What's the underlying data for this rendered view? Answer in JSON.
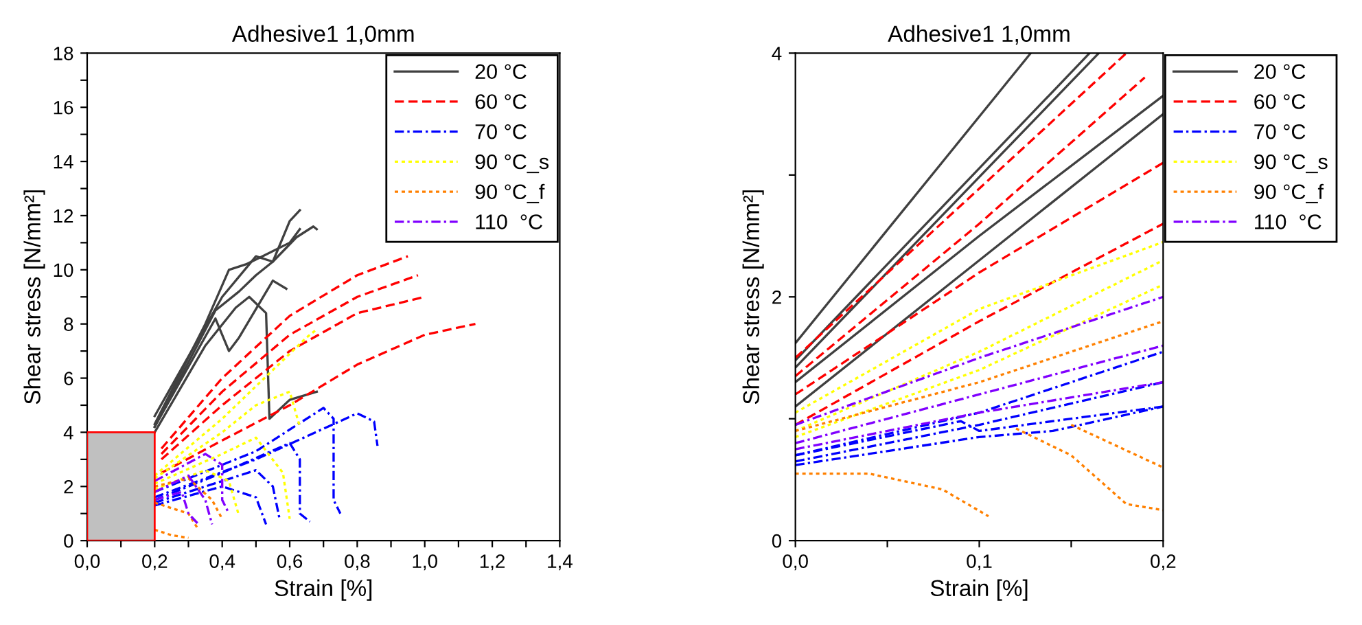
{
  "chart_data": [
    {
      "type": "line",
      "title": "Adhesive1 1,0mm",
      "xlabel": "Strain [%]",
      "ylabel": "Shear stress [N/mm²]",
      "legend": "top right",
      "grid": false,
      "xlim": [
        0,
        1.4
      ],
      "xticks": [
        {
          "value": 0,
          "label": "0,0"
        },
        {
          "value": 0.1,
          "label": null
        },
        {
          "value": 0.2,
          "label": "0,2"
        },
        {
          "value": 0.3,
          "label": null
        },
        {
          "value": 0.4,
          "label": "0,4"
        },
        {
          "value": 0.5,
          "label": null
        },
        {
          "value": 0.6,
          "label": "0,6"
        },
        {
          "value": 0.7,
          "label": null
        },
        {
          "value": 0.8,
          "label": "0,8"
        },
        {
          "value": 0.9,
          "label": null
        },
        {
          "value": 1.0,
          "label": "1,0"
        },
        {
          "value": 1.1,
          "label": null
        },
        {
          "value": 1.2,
          "label": "1,2"
        },
        {
          "value": 1.3,
          "label": null
        },
        {
          "value": 1.4,
          "label": "1,4"
        }
      ],
      "ylim": [
        0,
        18
      ],
      "yticks": [
        0,
        {
          "value": 1,
          "label": null
        },
        2,
        {
          "value": 3,
          "label": null
        },
        4,
        {
          "value": 5,
          "label": null
        },
        6,
        {
          "value": 7,
          "label": null
        },
        8,
        {
          "value": 9,
          "label": null
        },
        10,
        {
          "value": 11,
          "label": null
        },
        12,
        {
          "value": 13,
          "label": null
        },
        14,
        {
          "value": 15,
          "label": null
        },
        16,
        {
          "value": 17,
          "label": null
        },
        18
      ],
      "series": [
        {
          "name": "20 °C",
          "color": "#404040",
          "line_style": "solid",
          "x": [
            0.2,
            0.4,
            0.5,
            0.55,
            0.6,
            0.63
          ],
          "values": [
            4.6,
            9,
            10.5,
            10.3,
            11.8,
            12.2
          ]
        },
        {
          "color": "#404040",
          "line_style": "solid",
          "x": [
            0.2,
            0.35,
            0.42,
            0.47,
            0.52,
            0.6,
            0.63
          ],
          "values": [
            4.3,
            8,
            10,
            10.2,
            10.5,
            11,
            11.5
          ]
        },
        {
          "color": "#404040",
          "line_style": "solid",
          "x": [
            0.2,
            0.38,
            0.45,
            0.5,
            0.55,
            0.62,
            0.67,
            0.68
          ],
          "values": [
            4.2,
            8.5,
            9.2,
            9.8,
            10.3,
            11.2,
            11.6,
            11.5
          ]
        },
        {
          "color": "#404040",
          "line_style": "solid",
          "x": [
            0.2,
            0.35,
            0.44,
            0.48,
            0.53,
            0.54,
            0.6,
            0.68
          ],
          "values": [
            4.0,
            7.2,
            8.6,
            9,
            8.4,
            4.5,
            5.2,
            5.5
          ]
        },
        {
          "color": "#404040",
          "line_style": "solid",
          "x": [
            0.2,
            0.38,
            0.42,
            0.45,
            0.55,
            0.59
          ],
          "values": [
            4.2,
            8.2,
            7,
            7.5,
            9.6,
            9.3
          ]
        },
        {
          "name": "60 °C",
          "color": "#ff0000",
          "line_style": "dashed",
          "x": [
            0.22,
            0.4,
            0.6,
            0.8,
            0.95
          ],
          "values": [
            3.4,
            6.0,
            8.3,
            9.8,
            10.5
          ]
        },
        {
          "color": "#ff0000",
          "line_style": "dashed",
          "x": [
            0.22,
            0.4,
            0.6,
            0.8,
            0.98
          ],
          "values": [
            3.2,
            5.5,
            7.6,
            9.0,
            9.8
          ]
        },
        {
          "color": "#ff0000",
          "line_style": "dashed",
          "x": [
            0.22,
            0.4,
            0.6,
            0.8,
            1.0
          ],
          "values": [
            3.0,
            5.0,
            7.0,
            8.4,
            9.0
          ]
        },
        {
          "color": "#ff0000",
          "line_style": "dashed",
          "x": [
            0.22,
            0.4,
            0.6,
            0.8,
            1.0,
            1.15
          ],
          "values": [
            2.5,
            3.7,
            5.0,
            6.5,
            7.6,
            8.0
          ]
        },
        {
          "name": "70 °C",
          "color": "#0000ff",
          "line_style": "dashdot",
          "x": [
            0.2,
            0.5,
            0.7,
            0.73,
            0.73,
            0.75
          ],
          "values": [
            1.8,
            3.3,
            4.9,
            4.5,
            1.5,
            1.0
          ]
        },
        {
          "color": "#0000ff",
          "line_style": "dashdot",
          "x": [
            0.2,
            0.5,
            0.8,
            0.85,
            0.86
          ],
          "values": [
            1.6,
            3.0,
            4.7,
            4.4,
            3.5
          ]
        },
        {
          "color": "#0000ff",
          "line_style": "dashdot",
          "x": [
            0.2,
            0.4,
            0.6,
            0.63,
            0.63,
            0.66
          ],
          "values": [
            1.5,
            2.5,
            3.6,
            3.0,
            1.0,
            0.7
          ]
        },
        {
          "color": "#0000ff",
          "line_style": "dashdot",
          "x": [
            0.2,
            0.4,
            0.5,
            0.55,
            0.57
          ],
          "values": [
            1.4,
            2.2,
            2.6,
            2.0,
            0.8
          ]
        },
        {
          "color": "#0000ff",
          "line_style": "dashdot",
          "x": [
            0.2,
            0.4,
            0.5,
            0.53
          ],
          "values": [
            1.3,
            2.0,
            1.6,
            0.6
          ]
        },
        {
          "name": "90 °C_s",
          "color": "#ffff00",
          "line_style": "dotted",
          "x": [
            0.2,
            0.4,
            0.55,
            0.65,
            0.68
          ],
          "values": [
            2.4,
            4.5,
            6.3,
            7.5,
            7.8
          ]
        },
        {
          "color": "#ffff00",
          "line_style": "dotted",
          "x": [
            0.2,
            0.4,
            0.5,
            0.6,
            0.63
          ],
          "values": [
            2.3,
            4.0,
            5.0,
            5.5,
            4.2
          ]
        },
        {
          "color": "#ffff00",
          "line_style": "dotted",
          "x": [
            0.2,
            0.4,
            0.5,
            0.58,
            0.6
          ],
          "values": [
            2.1,
            3.2,
            3.8,
            2.5,
            0.8
          ]
        },
        {
          "color": "#ffff00",
          "line_style": "dotted",
          "x": [
            0.2,
            0.35,
            0.42,
            0.45
          ],
          "values": [
            1.9,
            2.6,
            2.2,
            0.9
          ]
        },
        {
          "name": "90 °C_f",
          "color": "#ff8000",
          "line_style": "dotted",
          "x": [
            0.2,
            0.3,
            0.37,
            0.4
          ],
          "values": [
            2.0,
            2.3,
            1.5,
            0.8
          ]
        },
        {
          "color": "#ff8000",
          "line_style": "dotted",
          "x": [
            0.2,
            0.3,
            0.33
          ],
          "values": [
            1.4,
            1.0,
            0.4
          ]
        },
        {
          "color": "#ff8000",
          "line_style": "dotted",
          "x": [
            0.2,
            0.25,
            0.3
          ],
          "values": [
            0.4,
            0.2,
            0.1
          ]
        },
        {
          "name": "110  °C",
          "color": "#8000ff",
          "line_style": "dashdot",
          "x": [
            0.2,
            0.35,
            0.4,
            0.4,
            0.42
          ],
          "values": [
            2.2,
            3.2,
            2.8,
            1.5,
            1.0
          ]
        },
        {
          "color": "#8000ff",
          "line_style": "dashdot",
          "x": [
            0.2,
            0.3,
            0.35,
            0.37
          ],
          "values": [
            1.8,
            2.4,
            1.5,
            0.6
          ]
        },
        {
          "color": "#8000ff",
          "line_style": "dashdot",
          "x": [
            0.2,
            0.28,
            0.3,
            0.33
          ],
          "values": [
            1.5,
            1.8,
            1.0,
            0.6
          ]
        },
        {
          "type": "area",
          "color": "#c0c0c0",
          "x": [
            0,
            0.2
          ],
          "values": [
            4,
            4
          ]
        }
      ]
    },
    {
      "type": "line",
      "title": "Adhesive1 1,0mm",
      "xlabel": "Strain [%]",
      "ylabel": "Shear stress [N/mm²]",
      "legend": "right",
      "grid": false,
      "xlim": [
        0,
        0.2
      ],
      "xticks": [
        {
          "value": 0,
          "label": "0,0"
        },
        {
          "value": 0.05,
          "label": null
        },
        {
          "value": 0.1,
          "label": "0,1"
        },
        {
          "value": 0.15,
          "label": null
        },
        {
          "value": 0.2,
          "label": "0,2"
        }
      ],
      "ylim": [
        0,
        4
      ],
      "yticks": [
        0,
        {
          "value": 1,
          "label": null
        },
        2,
        {
          "value": 3,
          "label": null
        },
        4
      ],
      "series": [
        {
          "name": "20 °C",
          "color": "#404040",
          "line_style": "solid",
          "x": [
            0,
            0.128
          ],
          "values": [
            1.62,
            4
          ]
        },
        {
          "color": "#404040",
          "line_style": "solid",
          "x": [
            0,
            0.16
          ],
          "values": [
            1.48,
            4
          ]
        },
        {
          "color": "#404040",
          "line_style": "solid",
          "x": [
            0,
            0.165
          ],
          "values": [
            1.42,
            4
          ]
        },
        {
          "color": "#404040",
          "line_style": "solid",
          "x": [
            0,
            0.1,
            0.2
          ],
          "values": [
            1.3,
            2.5,
            3.65
          ]
        },
        {
          "color": "#404040",
          "line_style": "solid",
          "x": [
            0,
            0.1,
            0.2
          ],
          "values": [
            1.1,
            2.3,
            3.5
          ]
        },
        {
          "name": "60 °C",
          "color": "#ff0000",
          "line_style": "dashed",
          "x": [
            0,
            0.18
          ],
          "values": [
            1.5,
            4
          ]
        },
        {
          "color": "#ff0000",
          "line_style": "dashed",
          "x": [
            0,
            0.1,
            0.19
          ],
          "values": [
            1.35,
            2.6,
            3.8
          ]
        },
        {
          "color": "#ff0000",
          "line_style": "dashed",
          "x": [
            0,
            0.1,
            0.2
          ],
          "values": [
            1.2,
            2.2,
            3.1
          ]
        },
        {
          "color": "#ff0000",
          "line_style": "dashed",
          "x": [
            0,
            0.1,
            0.2
          ],
          "values": [
            0.95,
            1.8,
            2.6
          ]
        },
        {
          "name": "70 °C",
          "color": "#0000ff",
          "line_style": "dashdot",
          "x": [
            0,
            0.1,
            0.2
          ],
          "values": [
            0.7,
            1.05,
            1.55
          ]
        },
        {
          "color": "#0000ff",
          "line_style": "dashdot",
          "x": [
            0,
            0.1,
            0.2
          ],
          "values": [
            0.65,
            0.95,
            1.3
          ]
        },
        {
          "color": "#0000ff",
          "line_style": "dashdot",
          "x": [
            0,
            0.09,
            0.1,
            0.2
          ],
          "values": [
            0.7,
            0.98,
            0.9,
            1.1
          ]
        },
        {
          "color": "#0000ff",
          "line_style": "dashdot",
          "x": [
            0,
            0.1,
            0.14,
            0.2
          ],
          "values": [
            0.62,
            0.85,
            0.9,
            1.1
          ]
        },
        {
          "name": "90 °C_s",
          "color": "#ffff00",
          "line_style": "dotted",
          "x": [
            0,
            0.1,
            0.2
          ],
          "values": [
            1.05,
            1.9,
            2.45
          ]
        },
        {
          "color": "#ffff00",
          "line_style": "dotted",
          "x": [
            0,
            0.1,
            0.2
          ],
          "values": [
            0.9,
            1.55,
            2.3
          ]
        },
        {
          "color": "#ffff00",
          "line_style": "dotted",
          "x": [
            0,
            0.1,
            0.2
          ],
          "values": [
            0.85,
            1.4,
            2.1
          ]
        },
        {
          "name": "90 °C_f",
          "color": "#ff8000",
          "line_style": "dotted",
          "x": [
            0,
            0.04,
            0.08,
            0.105
          ],
          "values": [
            0.55,
            0.55,
            0.42,
            0.2
          ]
        },
        {
          "color": "#ff8000",
          "line_style": "dotted",
          "x": [
            0,
            0.1,
            0.2
          ],
          "values": [
            0.9,
            1.3,
            1.8
          ]
        },
        {
          "color": "#ff8000",
          "line_style": "dotted",
          "x": [
            0.12,
            0.15,
            0.18,
            0.2
          ],
          "values": [
            0.92,
            0.7,
            0.3,
            0.25
          ]
        },
        {
          "color": "#ff8000",
          "line_style": "dotted",
          "x": [
            0.15,
            0.2
          ],
          "values": [
            0.95,
            0.6
          ]
        },
        {
          "name": "110  °C",
          "color": "#8000ff",
          "line_style": "dashdot",
          "x": [
            0,
            0.1,
            0.2
          ],
          "values": [
            0.95,
            1.5,
            2.0
          ]
        },
        {
          "color": "#8000ff",
          "line_style": "dashdot",
          "x": [
            0,
            0.1,
            0.2
          ],
          "values": [
            0.8,
            1.2,
            1.6
          ]
        },
        {
          "color": "#8000ff",
          "line_style": "dashdot",
          "x": [
            0,
            0.1,
            0.2
          ],
          "values": [
            0.75,
            1.05,
            1.3
          ]
        }
      ]
    }
  ]
}
